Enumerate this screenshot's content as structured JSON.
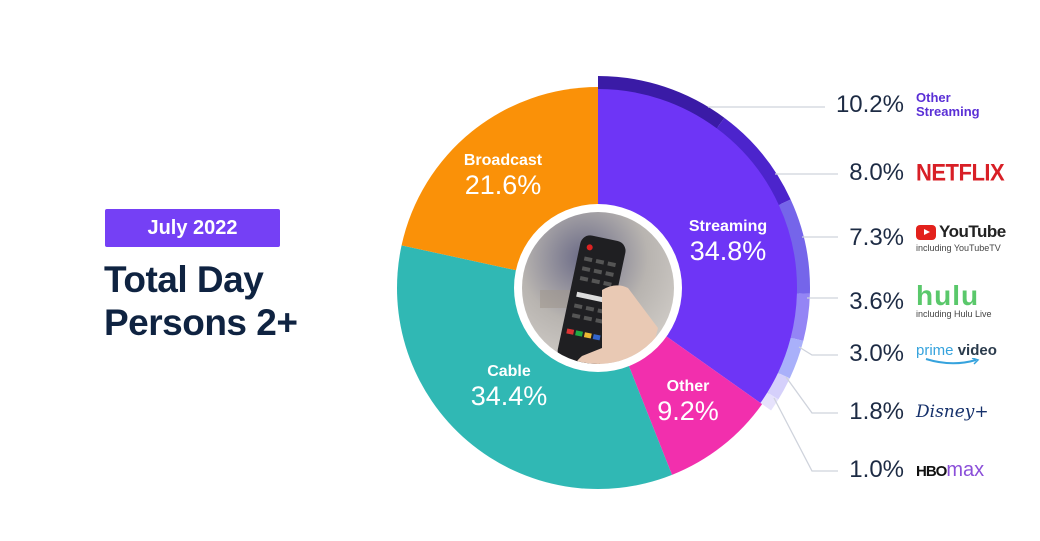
{
  "header": {
    "badge": "July 2022",
    "title_line1": "Total Day",
    "title_line2": "Persons 2+"
  },
  "slices": [
    {
      "name": "Streaming",
      "value": "34.8%",
      "color": "#6e35f6"
    },
    {
      "name": "Other",
      "value": "9.2%",
      "color": "#f22fad"
    },
    {
      "name": "Cable",
      "value": "34.4%",
      "color": "#30b8b4"
    },
    {
      "name": "Broadcast",
      "value": "21.6%",
      "color": "#fa9108"
    }
  ],
  "legend": [
    {
      "pct": "10.2%",
      "brand": "Other Streaming",
      "brand_line1": "Other",
      "brand_line2": "Streaming",
      "color": "#3a1ba6"
    },
    {
      "pct": "8.0%",
      "brand": "NETFLIX",
      "color": "#4c24cc"
    },
    {
      "pct": "7.3%",
      "brand": "YouTube",
      "sub": "including YouTubeTV",
      "color": "#7565ea"
    },
    {
      "pct": "3.6%",
      "brand": "hulu",
      "sub": "including Hulu Live",
      "color": "#9485f5"
    },
    {
      "pct": "3.0%",
      "brand_p1": "prime",
      "brand_p2": "video",
      "color": "#a9b0fa"
    },
    {
      "pct": "1.8%",
      "brand": "Disney+",
      "color": "#d5d0fb"
    },
    {
      "pct": "1.0%",
      "brand_p1": "HBO",
      "brand_p2": "max",
      "color": "#e6e2fc"
    }
  ],
  "chart_data": {
    "type": "pie",
    "title": "Total Day Persons 2+",
    "subtitle": "July 2022",
    "categories": [
      "Streaming",
      "Other",
      "Cable",
      "Broadcast"
    ],
    "values": [
      34.8,
      9.2,
      34.4,
      21.6
    ],
    "breakdown": {
      "parent": "Streaming",
      "categories": [
        "Other Streaming",
        "Netflix",
        "YouTube (including YouTubeTV)",
        "Hulu (including Hulu Live)",
        "Prime Video",
        "Disney+",
        "HBO Max"
      ],
      "values": [
        10.2,
        8.0,
        7.3,
        3.6,
        3.0,
        1.8,
        1.0
      ]
    },
    "legend_position": "right",
    "center_image": "hand holding TV remote control"
  }
}
